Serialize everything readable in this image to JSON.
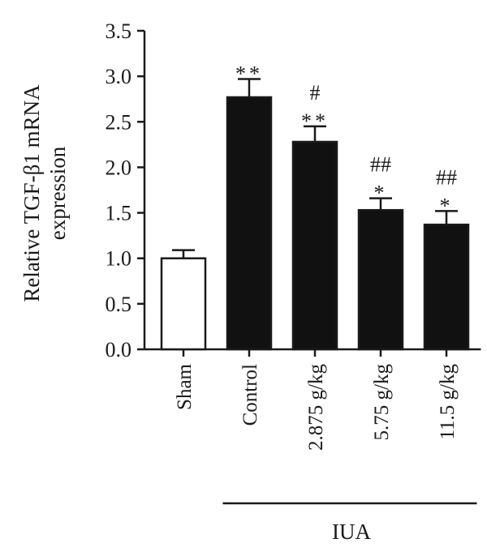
{
  "chart_data": {
    "type": "bar",
    "title": "",
    "ylabel": "Relative TGF-β1 mRNA expression",
    "ylabel_lines": [
      "Relative TGF-β1 mRNA",
      "expression"
    ],
    "xlabel": "",
    "ylim": [
      0,
      3.5
    ],
    "yticks": [
      "0.0",
      "0.5",
      "1.0",
      "1.5",
      "2.0",
      "2.5",
      "3.0",
      "3.5"
    ],
    "grid": false,
    "legend": "none",
    "categories": [
      "Sham",
      "Control",
      "2.875 g/kg",
      "5.75 g/kg",
      "11.5 g/kg"
    ],
    "values": [
      1.0,
      2.77,
      2.28,
      1.53,
      1.37
    ],
    "errors": [
      0.09,
      0.2,
      0.17,
      0.13,
      0.15
    ],
    "fills": [
      "#ffffff",
      "#111111",
      "#111111",
      "#111111",
      "#111111"
    ],
    "annotations": [
      {
        "category": "Sham",
        "lines": []
      },
      {
        "category": "Control",
        "lines": [
          "**"
        ]
      },
      {
        "category": "2.875 g/kg",
        "lines": [
          "#",
          "**"
        ]
      },
      {
        "category": "5.75 g/kg",
        "lines": [
          "##",
          "*"
        ]
      },
      {
        "category": "11.5 g/kg",
        "lines": [
          "##",
          "*"
        ]
      }
    ],
    "group": {
      "label": "IUA",
      "from": "Control",
      "to": "11.5 g/kg"
    }
  }
}
